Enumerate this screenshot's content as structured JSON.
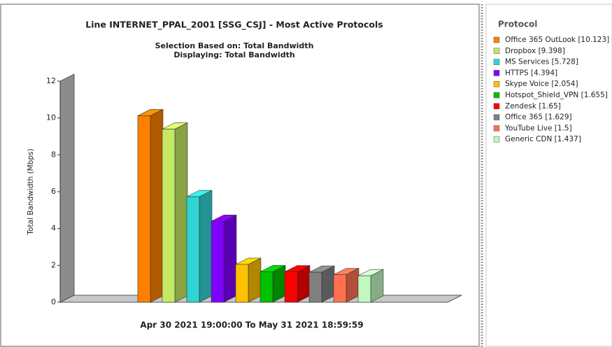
{
  "chart_data": {
    "type": "bar3d",
    "title": "Line INTERNET_PPAL_2001 [SSG_CSJ] - Most Active Protocols",
    "subtitle": [
      "Selection Based on: Total Bandwidth",
      "Displaying: Total Bandwidth"
    ],
    "y_label": "Total Bandwidth (Mbps)",
    "x_label": "Apr 30 2021  19:00:00  To  May 31 2021  18:59:59",
    "legend_title": "Protocol",
    "ylim": [
      0,
      12
    ],
    "yticks": [
      0,
      2,
      4,
      6,
      8,
      10,
      12
    ],
    "series": [
      {
        "name": "Office 365 OutLook [10.123]",
        "color": "#ff8000",
        "values": [
          10.123
        ]
      },
      {
        "name": "Dropbox [9.398]",
        "color": "#c4e864",
        "values": [
          9.398
        ]
      },
      {
        "name": "MS Services [5.728]",
        "color": "#30d4d4",
        "values": [
          5.728
        ]
      },
      {
        "name": "HTTPS [4.394]",
        "color": "#8000ff",
        "values": [
          4.394
        ]
      },
      {
        "name": "Skype Voice [2.054]",
        "color": "#ffc000",
        "values": [
          2.054
        ]
      },
      {
        "name": "Hotspot_Shield_VPN [1.655]",
        "color": "#00c000",
        "values": [
          1.655
        ]
      },
      {
        "name": "Zendesk [1.65]",
        "color": "#ff0000",
        "values": [
          1.65
        ]
      },
      {
        "name": "Office 365 [1.629]",
        "color": "#808080",
        "values": [
          1.629
        ]
      },
      {
        "name": "YouTube Live [1.5]",
        "color": "#ff7050",
        "values": [
          1.5
        ]
      },
      {
        "name": "Generic CDN [1.437]",
        "color": "#c0f8c0",
        "values": [
          1.437
        ]
      }
    ]
  }
}
